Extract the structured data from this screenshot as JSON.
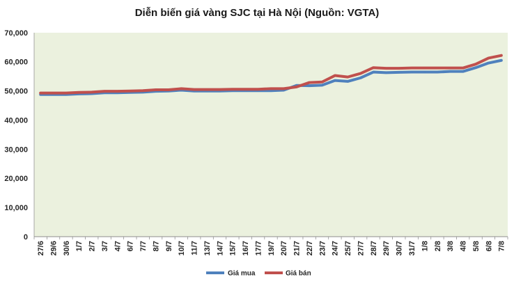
{
  "chart_data": {
    "type": "line",
    "title": "Diễn biến giá vàng SJC tại Hà Nội (Nguồn: VGTA)",
    "categories": [
      "27/6",
      "29/6",
      "30/6",
      "1/7",
      "2/7",
      "3/7",
      "4/7",
      "6/7",
      "7/7",
      "8/7",
      "9/7",
      "10/7",
      "11/7",
      "13/7",
      "14/7",
      "15/7",
      "16/7",
      "17/7",
      "19/7",
      "20/7",
      "21/7",
      "22/7",
      "23/7",
      "24/7",
      "25/7",
      "27/7",
      "28/7",
      "29/7",
      "30/7",
      "31/7",
      "1/8",
      "2/8",
      "3/8",
      "4/8",
      "5/8",
      "6/8",
      "7/8"
    ],
    "ylim": [
      0,
      70000
    ],
    "yticks": [
      0,
      10000,
      20000,
      30000,
      40000,
      50000,
      60000,
      70000
    ],
    "ytick_labels": [
      "0",
      "10,000",
      "20,000",
      "30,000",
      "40,000",
      "50,000",
      "60,000",
      "70,000"
    ],
    "grid": false,
    "legend": "bottom",
    "plot_background": "#EBF1DE",
    "series": [
      {
        "name": "Giá mua",
        "color": "#4F81BD",
        "values": [
          48800,
          48800,
          48800,
          49000,
          49100,
          49400,
          49400,
          49500,
          49600,
          49900,
          50000,
          50300,
          50000,
          50000,
          50000,
          50100,
          50100,
          50100,
          50100,
          50300,
          51900,
          51800,
          52000,
          53600,
          53300,
          54500,
          56500,
          56300,
          56400,
          56500,
          56500,
          56500,
          56700,
          56700,
          58000,
          59600,
          60500
        ]
      },
      {
        "name": "Giá bán",
        "color": "#C0504D",
        "values": [
          49300,
          49300,
          49300,
          49500,
          49600,
          49900,
          49900,
          50000,
          50100,
          50400,
          50400,
          50800,
          50500,
          50500,
          50500,
          50600,
          50600,
          50600,
          50800,
          50800,
          51400,
          52900,
          53100,
          55300,
          54800,
          56000,
          58000,
          57800,
          57800,
          57900,
          57900,
          57900,
          57900,
          57900,
          59200,
          61300,
          62200
        ]
      }
    ]
  }
}
